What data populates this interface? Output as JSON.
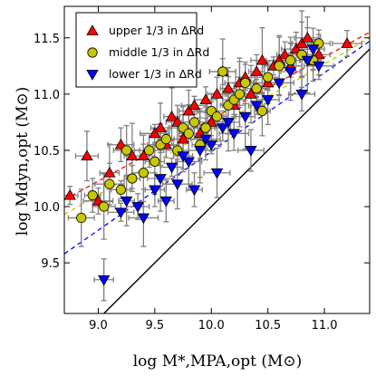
{
  "chart_data": {
    "type": "scatter",
    "title": "",
    "xlabel": "log M*,MPA,opt (M⊙)",
    "ylabel": "log Mdyn,opt (M⊙)",
    "xlim": [
      8.7,
      11.4
    ],
    "ylim": [
      9.05,
      11.78
    ],
    "x_ticks": [
      "9.0",
      "9.5",
      "10.0",
      "10.5",
      "11.0"
    ],
    "y_ticks": [
      "9.5",
      "10.0",
      "10.5",
      "11.0",
      "11.5"
    ],
    "grid": false,
    "legend_position": "top-left",
    "one_to_one_line": true,
    "series": [
      {
        "name": "upper 1/3 in ΔRd",
        "marker": "triangle-up",
        "color": "#ff0000",
        "fit_line": {
          "x": [
            8.7,
            11.4
          ],
          "y": [
            10.06,
            11.55
          ]
        },
        "x": [
          8.75,
          8.9,
          9.0,
          9.1,
          9.2,
          9.3,
          9.4,
          9.5,
          9.55,
          9.6,
          9.65,
          9.7,
          9.75,
          9.8,
          9.85,
          9.9,
          9.95,
          10.0,
          10.05,
          10.1,
          10.15,
          10.2,
          10.25,
          10.3,
          10.35,
          10.4,
          10.45,
          10.5,
          10.55,
          10.6,
          10.65,
          10.7,
          10.75,
          10.8,
          10.85,
          10.9,
          10.95,
          11.2
        ],
        "y": [
          10.1,
          10.45,
          10.05,
          10.3,
          10.55,
          10.45,
          10.45,
          10.65,
          10.7,
          10.55,
          10.8,
          10.75,
          10.6,
          10.85,
          10.9,
          10.65,
          10.95,
          10.75,
          11.0,
          11.2,
          11.05,
          10.9,
          11.1,
          11.15,
          11.0,
          11.2,
          11.3,
          11.1,
          11.25,
          11.3,
          11.35,
          11.25,
          11.4,
          11.45,
          11.5,
          11.3,
          11.35,
          11.45
        ]
      },
      {
        "name": "middle 1/3 in ΔRd",
        "marker": "circle",
        "color": "#c8c800",
        "fit_line": {
          "x": [
            8.7,
            11.4
          ],
          "y": [
            9.93,
            11.5
          ]
        },
        "x": [
          8.85,
          8.95,
          9.05,
          9.1,
          9.2,
          9.25,
          9.3,
          9.4,
          9.45,
          9.5,
          9.55,
          9.6,
          9.7,
          9.75,
          9.8,
          9.85,
          9.9,
          9.95,
          10.0,
          10.05,
          10.1,
          10.15,
          10.2,
          10.25,
          10.3,
          10.4,
          10.45,
          10.5,
          10.6,
          10.7,
          10.8,
          10.9,
          10.95
        ],
        "y": [
          9.9,
          10.1,
          10.0,
          10.2,
          10.15,
          10.5,
          10.25,
          10.3,
          10.5,
          10.4,
          10.55,
          10.6,
          10.5,
          10.7,
          10.65,
          10.75,
          10.55,
          10.7,
          10.85,
          10.8,
          11.2,
          10.9,
          10.95,
          11.0,
          11.1,
          11.05,
          10.85,
          11.15,
          11.25,
          11.3,
          11.35,
          11.3,
          11.45
        ]
      },
      {
        "name": "lower 1/3 in ΔRd",
        "marker": "triangle-down",
        "color": "#0000ff",
        "fit_line": {
          "x": [
            8.7,
            11.4
          ],
          "y": [
            9.58,
            11.47
          ]
        },
        "x": [
          9.05,
          9.2,
          9.25,
          9.35,
          9.4,
          9.5,
          9.55,
          9.6,
          9.65,
          9.7,
          9.75,
          9.8,
          9.85,
          9.9,
          9.95,
          10.0,
          10.05,
          10.1,
          10.15,
          10.2,
          10.3,
          10.35,
          10.4,
          10.5,
          10.6,
          10.7,
          10.8,
          10.85,
          10.9,
          10.95
        ],
        "y": [
          9.35,
          9.95,
          10.05,
          10.0,
          9.9,
          10.15,
          10.25,
          10.05,
          10.35,
          10.2,
          10.45,
          10.4,
          10.15,
          10.5,
          10.6,
          10.55,
          10.3,
          10.7,
          10.75,
          10.65,
          10.8,
          10.5,
          10.9,
          10.95,
          11.1,
          11.2,
          11.0,
          11.3,
          11.4,
          11.25
        ]
      }
    ]
  }
}
